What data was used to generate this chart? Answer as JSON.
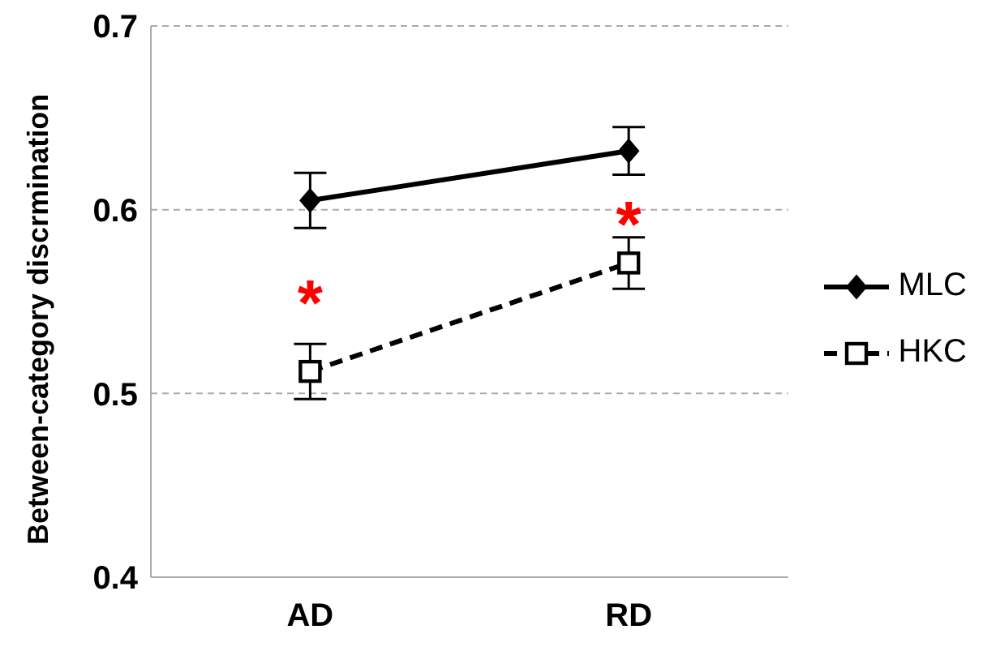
{
  "chart_data": {
    "type": "line",
    "ylabel": "Between-category discrmination",
    "categories": [
      "AD",
      "RD"
    ],
    "series": [
      {
        "name": "MLC",
        "color": "#000000",
        "values": [
          0.605,
          0.632
        ],
        "errors": [
          0.015,
          0.013
        ],
        "marker": "diamond",
        "line_style": "solid"
      },
      {
        "name": "HKC",
        "color": "#000000",
        "values": [
          0.512,
          0.571
        ],
        "errors": [
          0.015,
          0.014
        ],
        "marker": "square",
        "line_style": "dashed"
      }
    ],
    "ylim": [
      0.4,
      0.7
    ],
    "yticks": [
      0.4,
      0.5,
      0.6,
      0.7
    ],
    "grid": "y",
    "legend": "right",
    "annotations": [
      "*",
      "*"
    ]
  }
}
